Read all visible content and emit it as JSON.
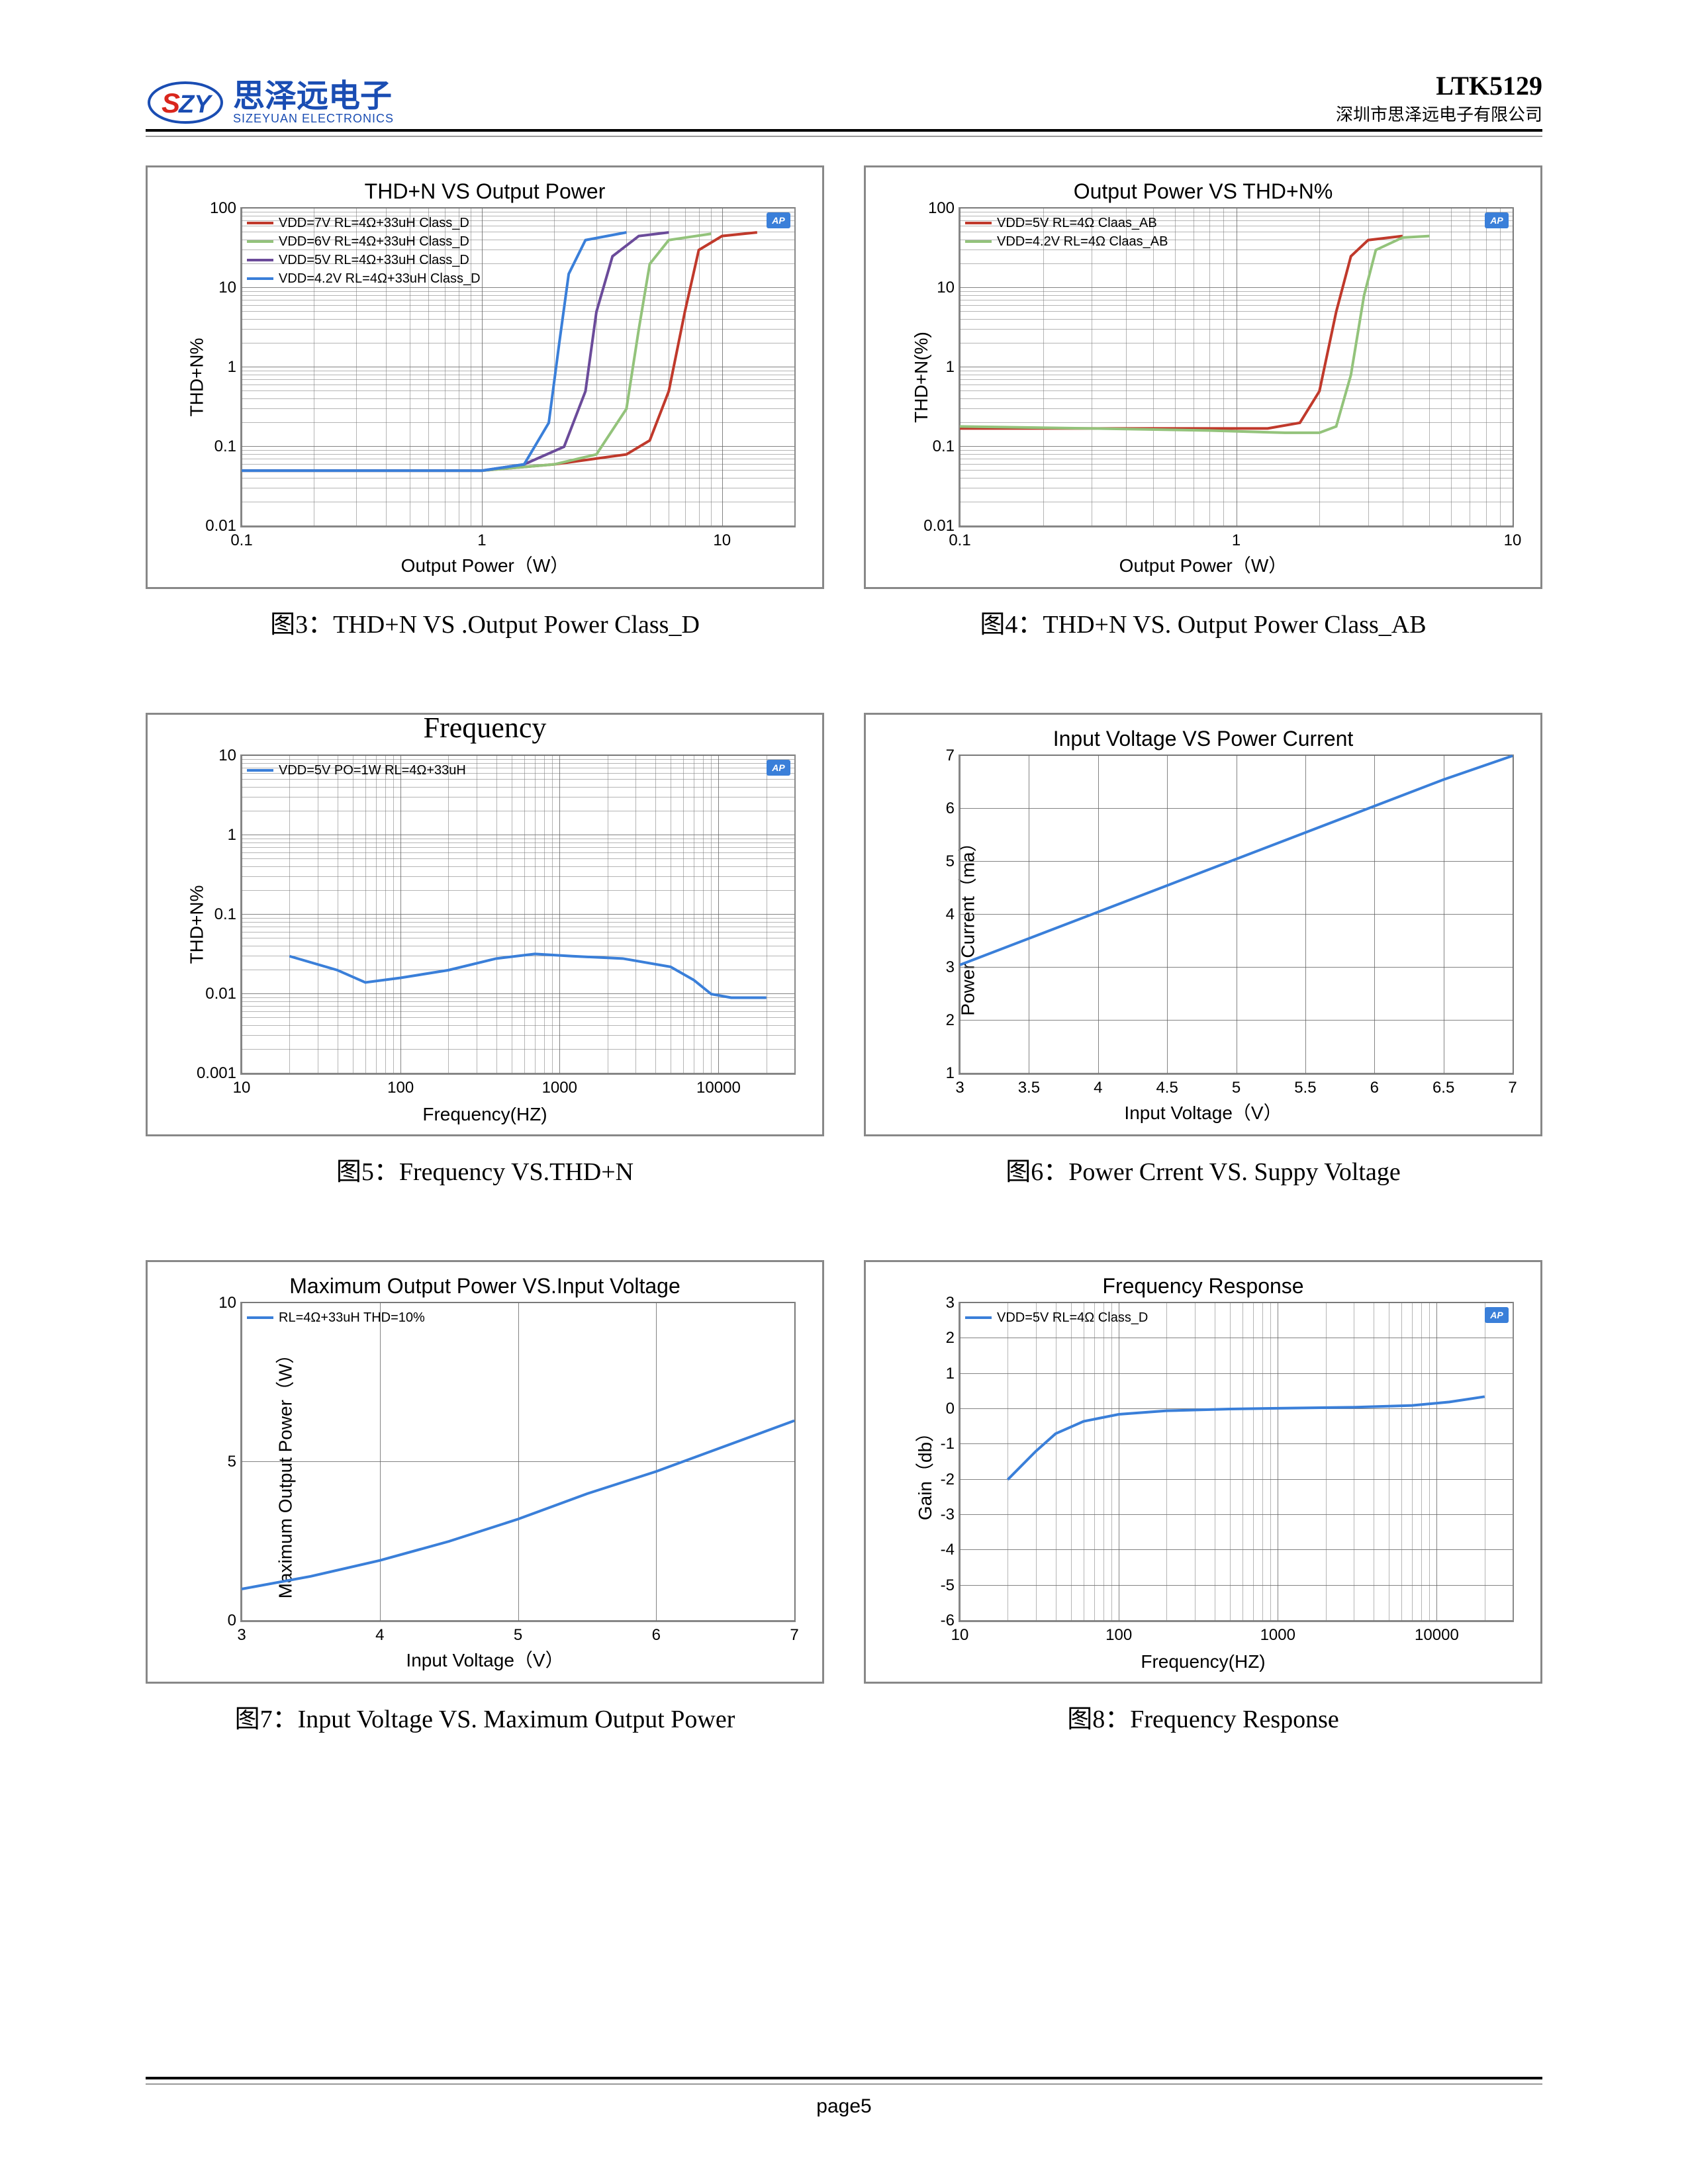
{
  "header": {
    "logo_cn": "思泽远电子",
    "logo_en": "SIZEYUAN ELECTRONICS",
    "part_number": "LTK5129",
    "company": "深圳市思泽远电子有限公司",
    "logo_colors": {
      "s_red": "#d9261c",
      "zy_blue": "#1a4db3"
    }
  },
  "footer": {
    "page": "page5"
  },
  "palette": {
    "red": "#c0392b",
    "green": "#93c37b",
    "purple": "#6b4b9a",
    "blue": "#3a7fd9",
    "grid": "#8a8a8a",
    "border": "#888888",
    "ap_badge_bg": "#3a7fd9"
  },
  "charts": [
    {
      "id": "c3",
      "title": "THD+N VS Output Power",
      "caption": "图3：THD+N VS .Output Power Class_D",
      "xlabel": "Output Power（W）",
      "ylabel": "THD+N%",
      "xscale": "log",
      "xlim": [
        0.1,
        20
      ],
      "xticks": [
        0.1,
        1,
        10
      ],
      "yscale": "log",
      "ylim": [
        0.01,
        100
      ],
      "yticks": [
        0.01,
        0.1,
        1,
        10,
        100
      ],
      "ap_badge": true,
      "legend_pos": "top-left",
      "series": [
        {
          "label": "VDD=7V  RL=4Ω+33uH Class_D",
          "color": "#c0392b",
          "points": [
            [
              0.1,
              0.05
            ],
            [
              0.5,
              0.05
            ],
            [
              1,
              0.05
            ],
            [
              2,
              0.06
            ],
            [
              4,
              0.08
            ],
            [
              5,
              0.12
            ],
            [
              6,
              0.5
            ],
            [
              7,
              5
            ],
            [
              8,
              30
            ],
            [
              10,
              45
            ],
            [
              14,
              50
            ]
          ]
        },
        {
          "label": "VDD=6V  RL=4Ω+33uH Class_D",
          "color": "#93c37b",
          "points": [
            [
              0.1,
              0.05
            ],
            [
              0.5,
              0.05
            ],
            [
              1,
              0.05
            ],
            [
              2,
              0.06
            ],
            [
              3,
              0.08
            ],
            [
              4,
              0.3
            ],
            [
              4.5,
              3
            ],
            [
              5,
              20
            ],
            [
              6,
              40
            ],
            [
              9,
              48
            ]
          ]
        },
        {
          "label": "VDD=5V  RL=4Ω+33uH Class_D",
          "color": "#6b4b9a",
          "points": [
            [
              0.1,
              0.05
            ],
            [
              0.5,
              0.05
            ],
            [
              1,
              0.05
            ],
            [
              1.5,
              0.06
            ],
            [
              2.2,
              0.1
            ],
            [
              2.7,
              0.5
            ],
            [
              3,
              5
            ],
            [
              3.5,
              25
            ],
            [
              4.5,
              45
            ],
            [
              6,
              50
            ]
          ]
        },
        {
          "label": "VDD=4.2V RL=4Ω+33uH Class_D",
          "color": "#3a7fd9",
          "points": [
            [
              0.1,
              0.05
            ],
            [
              0.5,
              0.05
            ],
            [
              1,
              0.05
            ],
            [
              1.5,
              0.06
            ],
            [
              1.9,
              0.2
            ],
            [
              2.1,
              2
            ],
            [
              2.3,
              15
            ],
            [
              2.7,
              40
            ],
            [
              4,
              50
            ]
          ]
        }
      ]
    },
    {
      "id": "c4",
      "title": "Output Power VS THD+N%",
      "caption": "图4：THD+N VS. Output Power Class_AB",
      "xlabel": "Output Power（W）",
      "ylabel": "THD+N(%)",
      "xscale": "log",
      "xlim": [
        0.1,
        10
      ],
      "xticks": [
        0.1,
        1,
        10
      ],
      "yscale": "log",
      "ylim": [
        0.01,
        100
      ],
      "yticks": [
        0.01,
        0.1,
        1,
        10,
        100
      ],
      "ap_badge": true,
      "legend_pos": "top-left",
      "series": [
        {
          "label": "VDD=5V  RL=4Ω Claas_AB",
          "color": "#c0392b",
          "points": [
            [
              0.1,
              0.17
            ],
            [
              0.3,
              0.17
            ],
            [
              0.8,
              0.17
            ],
            [
              1.3,
              0.17
            ],
            [
              1.7,
              0.2
            ],
            [
              2,
              0.5
            ],
            [
              2.3,
              5
            ],
            [
              2.6,
              25
            ],
            [
              3,
              40
            ],
            [
              4,
              45
            ]
          ]
        },
        {
          "label": "VDD=4.2V  RL=4Ω Claas_AB",
          "color": "#93c37b",
          "points": [
            [
              0.1,
              0.18
            ],
            [
              0.3,
              0.17
            ],
            [
              0.8,
              0.16
            ],
            [
              1.5,
              0.15
            ],
            [
              2,
              0.15
            ],
            [
              2.3,
              0.18
            ],
            [
              2.6,
              0.8
            ],
            [
              2.9,
              8
            ],
            [
              3.2,
              30
            ],
            [
              4,
              43
            ],
            [
              5,
              45
            ]
          ]
        }
      ]
    },
    {
      "id": "c5",
      "title": "Frequency",
      "title_clipped": true,
      "caption": "图5：Frequency VS.THD+N",
      "xlabel": "Frequency(HZ)",
      "ylabel": "THD+N%",
      "xscale": "log",
      "xlim": [
        10,
        30000
      ],
      "xticks": [
        10,
        100,
        1000,
        10000
      ],
      "yscale": "log",
      "ylim": [
        0.001,
        10
      ],
      "yticks": [
        0.001,
        0.01,
        0.1,
        1,
        10
      ],
      "ap_badge": true,
      "legend_pos": "top-left",
      "series": [
        {
          "label": "VDD=5V  PO=1W RL=4Ω+33uH",
          "color": "#3a7fd9",
          "points": [
            [
              20,
              0.03
            ],
            [
              40,
              0.02
            ],
            [
              60,
              0.014
            ],
            [
              100,
              0.016
            ],
            [
              200,
              0.02
            ],
            [
              400,
              0.028
            ],
            [
              700,
              0.032
            ],
            [
              1200,
              0.03
            ],
            [
              2500,
              0.028
            ],
            [
              5000,
              0.022
            ],
            [
              7000,
              0.015
            ],
            [
              9000,
              0.01
            ],
            [
              12000,
              0.009
            ],
            [
              20000,
              0.009
            ]
          ]
        }
      ]
    },
    {
      "id": "c6",
      "title": "Input Voltage VS Power Current",
      "caption": "图6：Power Crrent VS. Suppy Voltage",
      "xlabel": "Input Voltage（V）",
      "ylabel": "Power Current（ma）",
      "xscale": "linear",
      "xlim": [
        3,
        7
      ],
      "xticks": [
        3,
        3.5,
        4,
        4.5,
        5,
        5.5,
        6,
        6.5,
        7
      ],
      "yscale": "linear",
      "ylim": [
        1,
        7
      ],
      "yticks": [
        1,
        2,
        3,
        4,
        5,
        6,
        7
      ],
      "ap_badge": false,
      "legend_pos": null,
      "series": [
        {
          "label": "",
          "color": "#3a7fd9",
          "points": [
            [
              3,
              3.05
            ],
            [
              3.5,
              3.55
            ],
            [
              4,
              4.05
            ],
            [
              4.5,
              4.55
            ],
            [
              5,
              5.05
            ],
            [
              5.5,
              5.55
            ],
            [
              6,
              6.05
            ],
            [
              6.5,
              6.55
            ],
            [
              7,
              7.0
            ]
          ]
        }
      ]
    },
    {
      "id": "c7",
      "title": "Maximum Output Power VS.Input Voltage",
      "caption": "图7：Input Voltage VS. Maximum Output Power",
      "xlabel": "Input Voltage（V）",
      "ylabel": "Maximum Output Power（W）",
      "xscale": "linear",
      "xlim": [
        3,
        7
      ],
      "xticks": [
        3,
        4,
        5,
        6,
        7
      ],
      "yscale": "linear",
      "ylim": [
        0,
        10
      ],
      "yticks": [
        0,
        5,
        10
      ],
      "ap_badge": false,
      "legend_pos": "top-left",
      "series": [
        {
          "label": "RL=4Ω+33uH THD=10%",
          "color": "#3a7fd9",
          "points": [
            [
              3,
              1.0
            ],
            [
              3.5,
              1.4
            ],
            [
              4,
              1.9
            ],
            [
              4.5,
              2.5
            ],
            [
              5,
              3.2
            ],
            [
              5.5,
              4.0
            ],
            [
              6,
              4.7
            ],
            [
              6.5,
              5.5
            ],
            [
              7,
              6.3
            ]
          ]
        }
      ]
    },
    {
      "id": "c8",
      "title": "Frequency Response",
      "caption": "图8：Frequency Response",
      "xlabel": "Frequency(HZ)",
      "ylabel": "Gain（db）",
      "xscale": "log",
      "xlim": [
        10,
        30000
      ],
      "xticks": [
        10,
        100,
        1000,
        10000
      ],
      "yscale": "linear",
      "ylim": [
        -6,
        3
      ],
      "yticks": [
        -6,
        -5,
        -4,
        -3,
        -2,
        -1,
        0,
        1,
        2,
        3
      ],
      "ap_badge": true,
      "legend_pos": "top-left",
      "series": [
        {
          "label": "VDD=5V RL=4Ω Class_D",
          "color": "#3a7fd9",
          "points": [
            [
              20,
              -2.0
            ],
            [
              30,
              -1.2
            ],
            [
              40,
              -0.7
            ],
            [
              60,
              -0.35
            ],
            [
              100,
              -0.15
            ],
            [
              200,
              -0.05
            ],
            [
              500,
              0
            ],
            [
              1000,
              0.02
            ],
            [
              3000,
              0.05
            ],
            [
              7000,
              0.1
            ],
            [
              12000,
              0.2
            ],
            [
              20000,
              0.35
            ]
          ]
        }
      ]
    }
  ]
}
